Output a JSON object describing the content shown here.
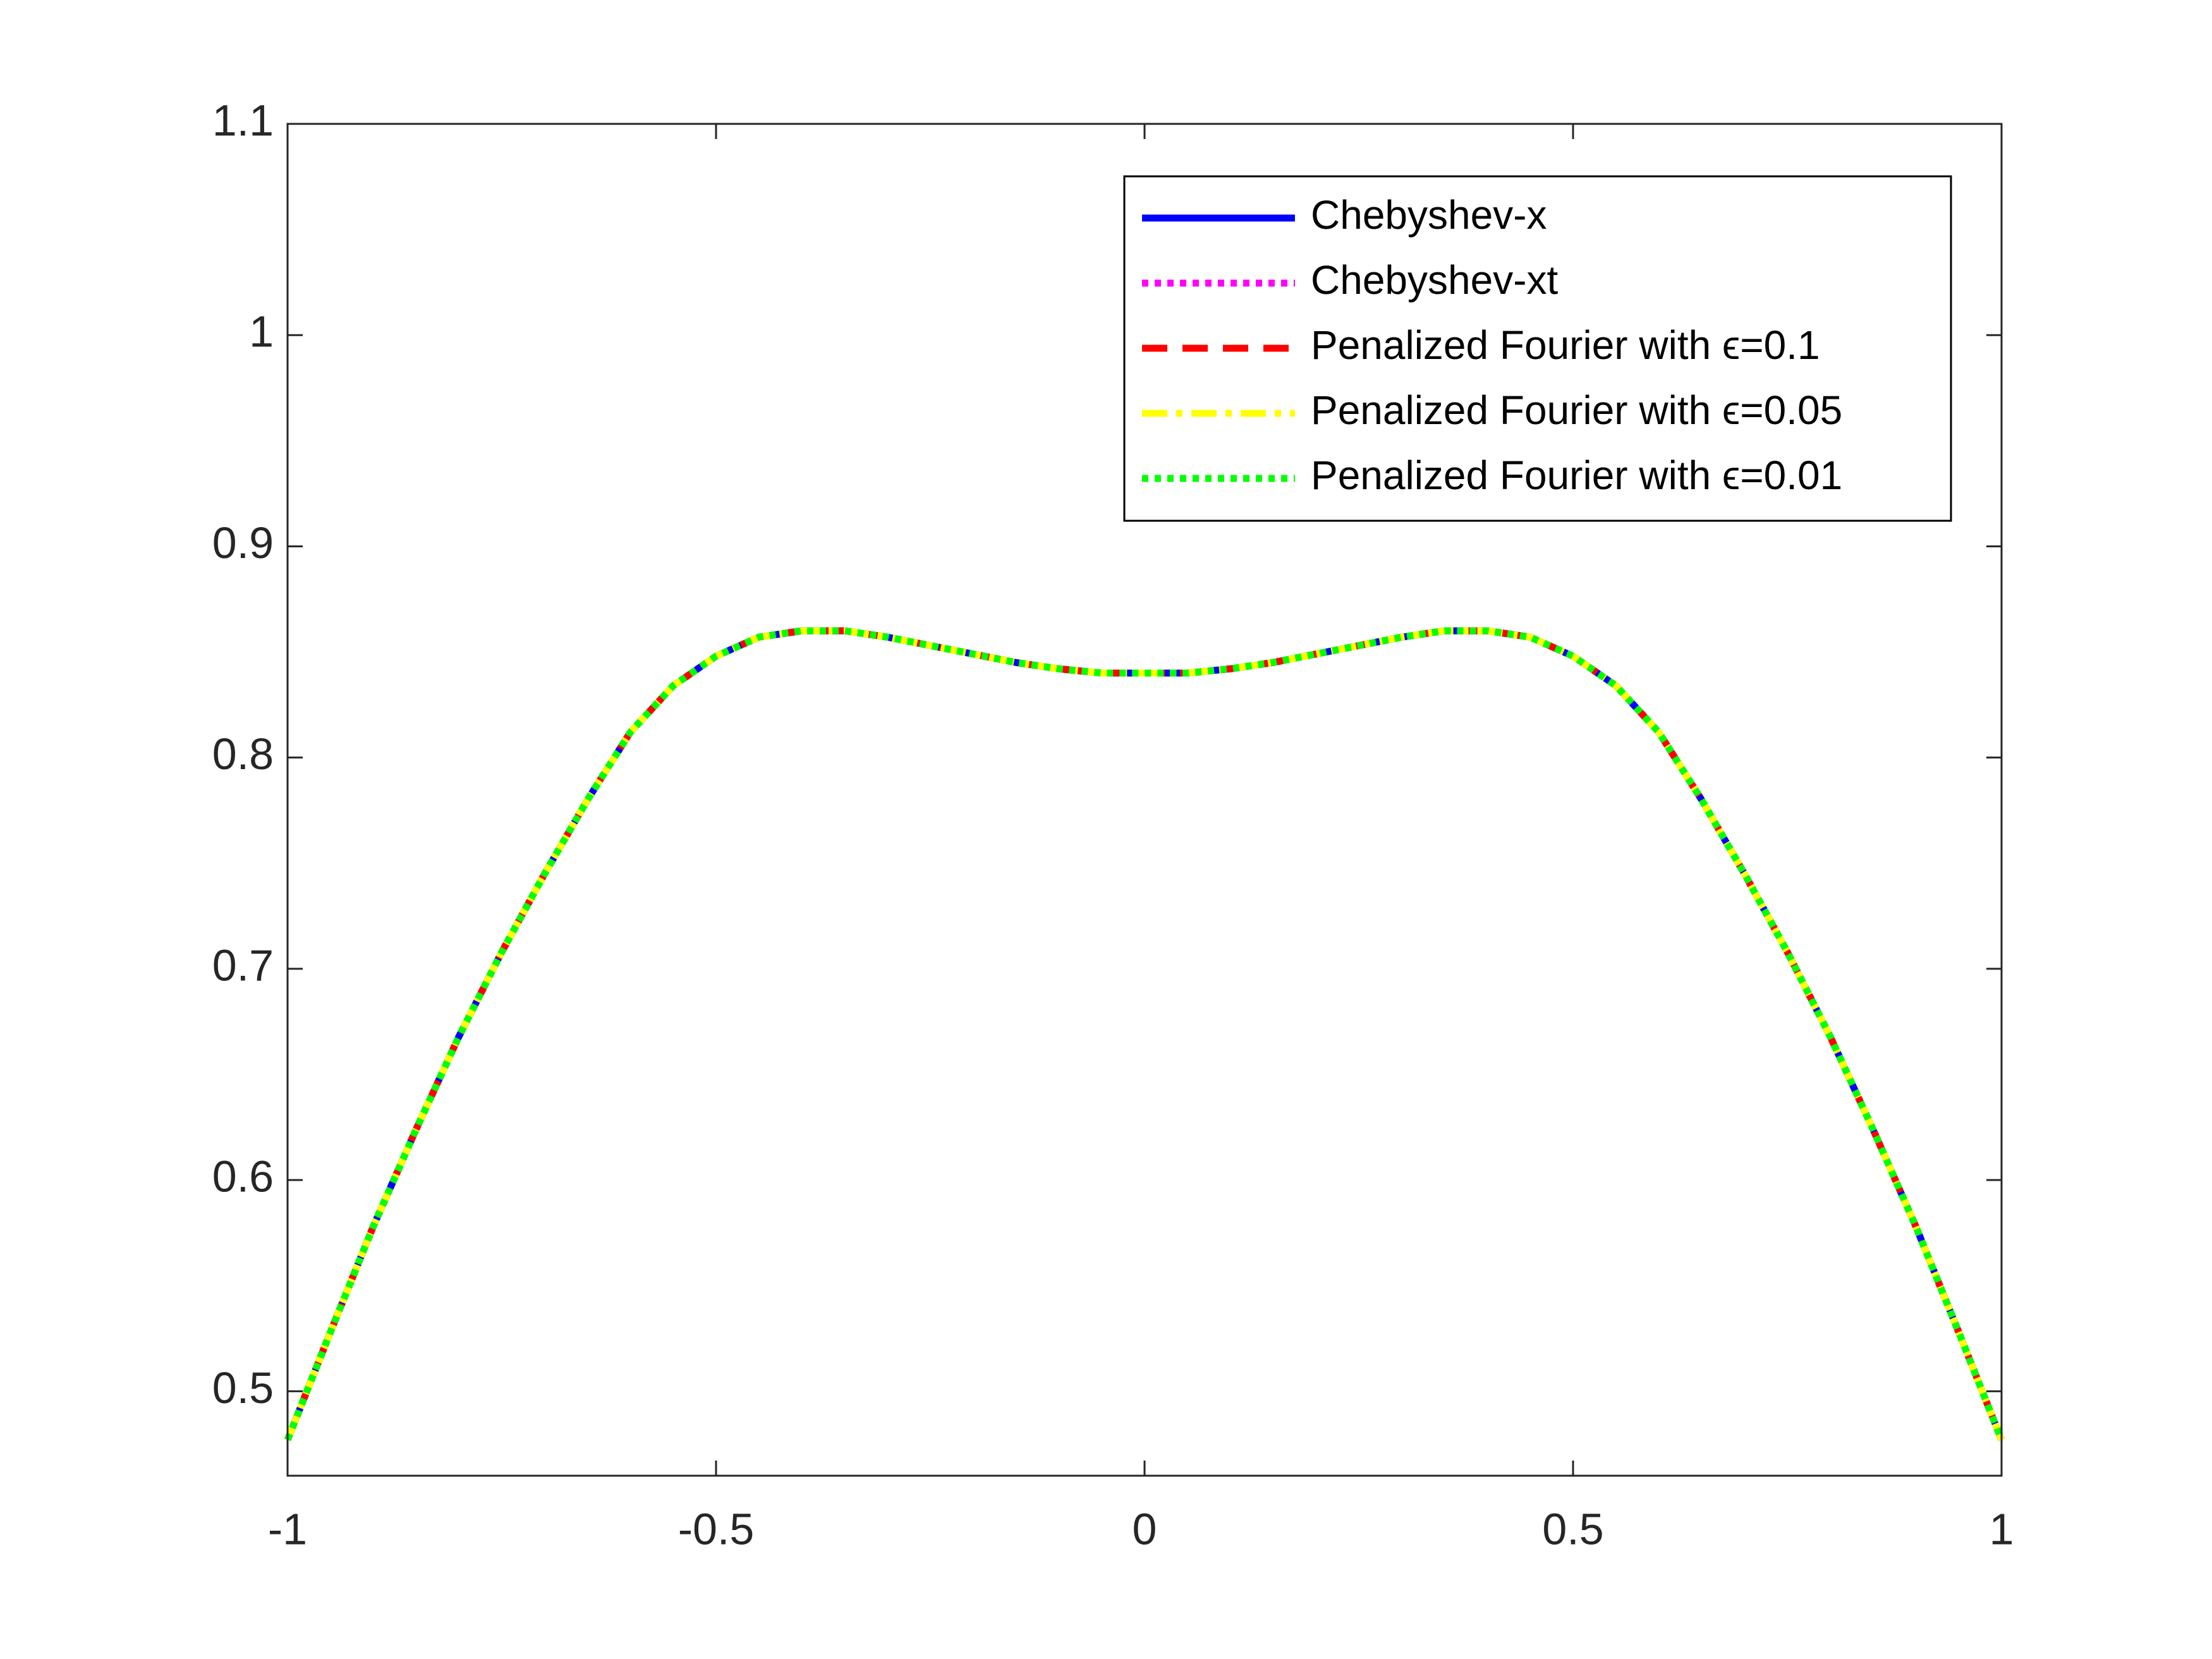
{
  "chart_data": {
    "type": "line",
    "x": [
      -1,
      -0.95,
      -0.9,
      -0.85,
      -0.8,
      -0.75,
      -0.7,
      -0.65,
      -0.6,
      -0.55,
      -0.5,
      -0.45,
      -0.4,
      -0.35,
      -0.3,
      -0.25,
      -0.2,
      -0.15,
      -0.1,
      -0.05,
      0,
      0.05,
      0.1,
      0.15,
      0.2,
      0.25,
      0.3,
      0.35,
      0.4,
      0.45,
      0.5,
      0.55,
      0.6,
      0.65,
      0.7,
      0.75,
      0.8,
      0.85,
      0.9,
      0.95,
      1
    ],
    "series": [
      {
        "name": "Chebyshev-x",
        "color": "#0000ff",
        "line_style": "solid",
        "values": [
          0.477,
          0.528,
          0.578,
          0.624,
          0.668,
          0.708,
          0.745,
          0.78,
          0.812,
          0.834,
          0.848,
          0.857,
          0.86,
          0.86,
          0.857,
          0.853,
          0.849,
          0.845,
          0.842,
          0.84,
          0.84,
          0.84,
          0.842,
          0.845,
          0.849,
          0.853,
          0.857,
          0.86,
          0.86,
          0.857,
          0.848,
          0.834,
          0.812,
          0.78,
          0.745,
          0.708,
          0.668,
          0.624,
          0.578,
          0.528,
          0.477
        ]
      },
      {
        "name": "Chebyshev-xt",
        "color": "#ff00ff",
        "line_style": "dotted",
        "values": [
          0.477,
          0.528,
          0.578,
          0.624,
          0.668,
          0.708,
          0.745,
          0.78,
          0.812,
          0.834,
          0.848,
          0.857,
          0.86,
          0.86,
          0.857,
          0.853,
          0.849,
          0.845,
          0.842,
          0.84,
          0.84,
          0.84,
          0.842,
          0.845,
          0.849,
          0.853,
          0.857,
          0.86,
          0.86,
          0.857,
          0.848,
          0.834,
          0.812,
          0.78,
          0.745,
          0.708,
          0.668,
          0.624,
          0.578,
          0.528,
          0.477
        ]
      },
      {
        "name": "Penalized Fourier with ϵ=0.1",
        "color": "#ff0000",
        "line_style": "dashed",
        "values": [
          0.477,
          0.528,
          0.578,
          0.624,
          0.668,
          0.708,
          0.745,
          0.78,
          0.812,
          0.834,
          0.848,
          0.857,
          0.86,
          0.86,
          0.857,
          0.853,
          0.849,
          0.845,
          0.842,
          0.84,
          0.84,
          0.84,
          0.842,
          0.845,
          0.849,
          0.853,
          0.857,
          0.86,
          0.86,
          0.857,
          0.848,
          0.834,
          0.812,
          0.78,
          0.745,
          0.708,
          0.668,
          0.624,
          0.578,
          0.528,
          0.477
        ]
      },
      {
        "name": "Penalized Fourier with ϵ=0.05",
        "color": "#ffff00",
        "line_style": "dashdot",
        "values": [
          0.477,
          0.528,
          0.578,
          0.624,
          0.668,
          0.708,
          0.745,
          0.78,
          0.812,
          0.834,
          0.848,
          0.857,
          0.86,
          0.86,
          0.857,
          0.853,
          0.849,
          0.845,
          0.842,
          0.84,
          0.84,
          0.84,
          0.842,
          0.845,
          0.849,
          0.853,
          0.857,
          0.86,
          0.86,
          0.857,
          0.848,
          0.834,
          0.812,
          0.78,
          0.745,
          0.708,
          0.668,
          0.624,
          0.578,
          0.528,
          0.477
        ]
      },
      {
        "name": "Penalized Fourier with ϵ=0.01",
        "color": "#00ff00",
        "line_style": "dotted",
        "values": [
          0.477,
          0.528,
          0.578,
          0.624,
          0.668,
          0.708,
          0.745,
          0.78,
          0.812,
          0.834,
          0.848,
          0.857,
          0.86,
          0.86,
          0.857,
          0.853,
          0.849,
          0.845,
          0.842,
          0.84,
          0.84,
          0.84,
          0.842,
          0.845,
          0.849,
          0.853,
          0.857,
          0.86,
          0.86,
          0.857,
          0.848,
          0.834,
          0.812,
          0.78,
          0.745,
          0.708,
          0.668,
          0.624,
          0.578,
          0.528,
          0.477
        ]
      }
    ],
    "xlim": [
      -1,
      1
    ],
    "xticks": [
      -1,
      -0.5,
      0,
      0.5,
      1
    ],
    "ylim": [
      0.46,
      1.1
    ],
    "yticks": [
      0.5,
      0.6,
      0.7,
      0.8,
      0.9,
      1,
      1.1
    ],
    "grid": false,
    "legend": "northeast"
  }
}
